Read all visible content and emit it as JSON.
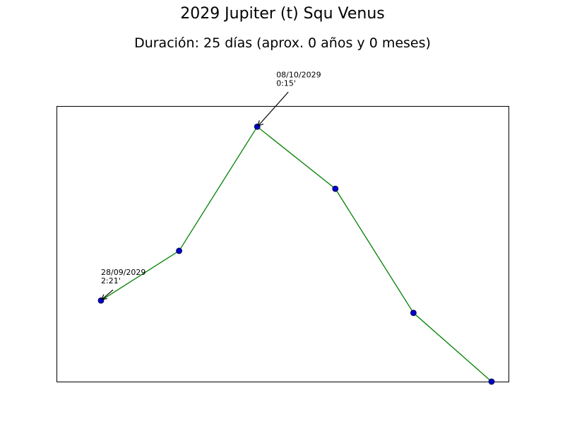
{
  "title": "2029 Jupiter (t) Squ Venus",
  "subtitle": "Duración: 25 días (aprox. 0 años y 0 meses)",
  "chart_data": {
    "type": "line",
    "title": "2029 Jupiter (t) Squ Venus",
    "subtitle": "Duración: 25 días (aprox. 0 años y 0 meses)",
    "xlabel": "",
    "ylabel": "",
    "x": [
      0,
      5,
      10,
      15,
      20,
      25
    ],
    "y": [
      2.35,
      1.75,
      0.25,
      1.0,
      2.5,
      3.33
    ],
    "ylim_top": 0,
    "ylim_bottom": 3.33,
    "y_inverted": true,
    "grid": false,
    "ticks_visible": false,
    "series": [
      {
        "values": [
          2.35,
          1.75,
          0.25,
          1.0,
          2.5,
          3.33
        ],
        "line_color": "#008000",
        "marker_color": "#0000cc"
      }
    ],
    "annotations": [
      {
        "point_index": 0,
        "date": "28/09/2029",
        "value": "2:21'"
      },
      {
        "point_index": 2,
        "date": "08/10/2029",
        "value": "0:15'"
      }
    ]
  }
}
